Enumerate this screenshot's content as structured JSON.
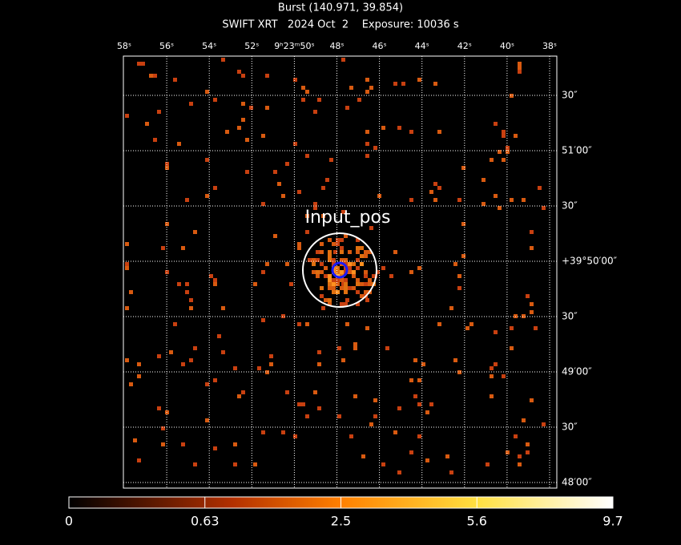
{
  "header": {
    "title": "Burst (140.971, 39.854)",
    "subtitle": "SWIFT XRT   2024 Oct  2    Exposure: 10036 s"
  },
  "image": {
    "annotation": "Input_pos",
    "ra_labels": [
      "58ˢ",
      "56ˢ",
      "54ˢ",
      "52ˢ",
      "9ʰ23ᵐ50ˢ",
      "48ˢ",
      "46ˢ",
      "44ˢ",
      "42ˢ",
      "40ˢ",
      "38ˢ"
    ],
    "dec_labels": [
      "30″",
      "51′00″",
      "30″",
      "+39°50′00″",
      "30″",
      "49′00″",
      "30″",
      "48′00″"
    ]
  },
  "colorbar": {
    "ticks": [
      0,
      0.63,
      2.5,
      5.6,
      9.7
    ]
  }
}
